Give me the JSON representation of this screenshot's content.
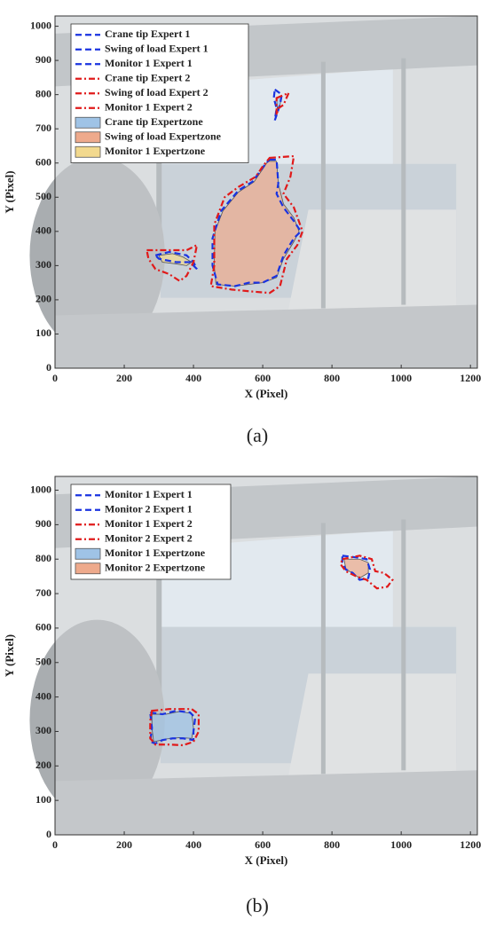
{
  "chart_data": [
    {
      "type": "polygon",
      "caption": "(a)",
      "x_label": "X (Pixel)",
      "y_label": "Y (Pixel)",
      "xlim": [
        0,
        1220
      ],
      "ylim": [
        0,
        1030
      ],
      "xticks": [
        0,
        200,
        400,
        600,
        800,
        1000,
        1200
      ],
      "yticks": [
        0,
        100,
        200,
        300,
        400,
        500,
        600,
        700,
        800,
        900,
        1000
      ],
      "legend": "upper left",
      "series": [
        {
          "name": "Crane tip Expert 1",
          "color": "#1a33e0",
          "style": "dashed",
          "x": [
            635,
            655,
            650,
            640,
            635,
            640,
            632
          ],
          "values": [
            815,
            800,
            770,
            740,
            725,
            760,
            790
          ]
        },
        {
          "name": "Swing of load Expert 1",
          "color": "#1a33e0",
          "style": "dashed",
          "x": [
            620,
            640,
            645,
            640,
            660,
            690,
            710,
            690,
            660,
            640,
            600,
            560,
            520,
            470,
            455,
            455,
            480,
            530,
            570,
            610
          ],
          "values": [
            610,
            610,
            540,
            510,
            470,
            430,
            400,
            380,
            330,
            270,
            250,
            250,
            240,
            245,
            300,
            380,
            460,
            520,
            545,
            600
          ]
        },
        {
          "name": "Monitor 1 Expert 1",
          "color": "#1a33e0",
          "style": "dashed",
          "x": [
            290,
            330,
            380,
            400,
            410,
            390,
            350,
            300
          ],
          "values": [
            330,
            340,
            330,
            310,
            290,
            310,
            310,
            320
          ]
        },
        {
          "name": "Crane tip Expert 2",
          "color": "#e01a1a",
          "style": "dashdot",
          "x": [
            640,
            675,
            660,
            645,
            640
          ],
          "values": [
            790,
            805,
            770,
            760,
            740
          ]
        },
        {
          "name": "Swing of load Expert 2",
          "color": "#e01a1a",
          "style": "dashdot",
          "x": [
            620,
            690,
            680,
            660,
            690,
            715,
            700,
            670,
            650,
            620,
            560,
            510,
            450,
            460,
            460,
            490,
            530,
            580,
            600
          ],
          "values": [
            615,
            620,
            560,
            510,
            470,
            400,
            360,
            320,
            240,
            220,
            225,
            230,
            240,
            300,
            420,
            500,
            530,
            560,
            590
          ]
        },
        {
          "name": "Monitor 1 Expert 2",
          "color": "#e01a1a",
          "style": "dashdot",
          "x": [
            265,
            320,
            380,
            410,
            400,
            380,
            360,
            330,
            290,
            270
          ],
          "values": [
            345,
            345,
            345,
            360,
            310,
            270,
            255,
            275,
            290,
            320
          ]
        },
        {
          "name": "Crane tip Expertzone",
          "color": "#9fc3e6",
          "style": "fill",
          "x": [
            640,
            655,
            650,
            642
          ],
          "values": [
            790,
            795,
            770,
            760
          ]
        },
        {
          "name": "Swing of load Expertzone",
          "color": "#eeaa8c",
          "style": "fill",
          "x": [
            615,
            640,
            645,
            660,
            690,
            705,
            690,
            660,
            640,
            600,
            520,
            465,
            460,
            462,
            485,
            530,
            575,
            605
          ],
          "values": [
            605,
            605,
            540,
            480,
            440,
            400,
            370,
            320,
            265,
            250,
            240,
            245,
            300,
            400,
            460,
            515,
            545,
            590
          ]
        },
        {
          "name": "Monitor 1 Expertzone",
          "color": "#f2d98e",
          "style": "fill",
          "x": [
            300,
            340,
            370,
            395,
            380,
            350,
            310
          ],
          "values": [
            330,
            335,
            325,
            310,
            300,
            305,
            310
          ]
        }
      ]
    },
    {
      "type": "polygon",
      "caption": "(b)",
      "x_label": "X (Pixel)",
      "y_label": "Y (Pixel)",
      "xlim": [
        0,
        1220
      ],
      "ylim": [
        0,
        1040
      ],
      "xticks": [
        0,
        200,
        400,
        600,
        800,
        1000,
        1200
      ],
      "yticks": [
        0,
        100,
        200,
        300,
        400,
        500,
        600,
        700,
        800,
        900,
        1000
      ],
      "legend": "upper left",
      "series": [
        {
          "name": "Monitor 1 Expert 1",
          "color": "#1a33e0",
          "style": "dashed",
          "x": [
            275,
            310,
            350,
            390,
            405,
            400,
            400,
            370,
            340,
            310,
            290,
            275,
            280
          ],
          "values": [
            355,
            350,
            360,
            355,
            340,
            300,
            275,
            280,
            280,
            275,
            265,
            270,
            310
          ]
        },
        {
          "name": "Monitor 2 Expert 1",
          "color": "#1a33e0",
          "style": "dashed",
          "x": [
            830,
            870,
            900,
            910,
            905,
            880,
            860,
            840,
            830
          ],
          "values": [
            810,
            805,
            800,
            770,
            745,
            740,
            760,
            770,
            790
          ]
        },
        {
          "name": "Monitor 1 Expert 2",
          "color": "#e01a1a",
          "style": "dashdot",
          "x": [
            280,
            330,
            395,
            415,
            415,
            400,
            370,
            330,
            290,
            275,
            275
          ],
          "values": [
            360,
            365,
            365,
            350,
            300,
            270,
            260,
            262,
            262,
            280,
            330
          ]
        },
        {
          "name": "Monitor 2 Expert 2",
          "color": "#e01a1a",
          "style": "dashdot",
          "x": [
            830,
            880,
            915,
            925,
            950,
            975,
            960,
            930,
            900,
            870,
            840,
            825
          ],
          "values": [
            800,
            810,
            800,
            765,
            760,
            740,
            720,
            715,
            740,
            750,
            765,
            785
          ]
        },
        {
          "name": "Monitor 1 Expertzone",
          "color": "#9fc3e6",
          "style": "fill",
          "x": [
            280,
            320,
            360,
            395,
            400,
            395,
            360,
            320,
            285,
            280
          ],
          "values": [
            350,
            350,
            358,
            352,
            310,
            280,
            282,
            278,
            270,
            310
          ]
        },
        {
          "name": "Monitor 2 Expertzone",
          "color": "#eeaa8c",
          "style": "fill",
          "x": [
            835,
            880,
            905,
            905,
            880,
            860,
            840
          ],
          "values": [
            800,
            800,
            790,
            760,
            745,
            758,
            772
          ]
        }
      ]
    }
  ]
}
